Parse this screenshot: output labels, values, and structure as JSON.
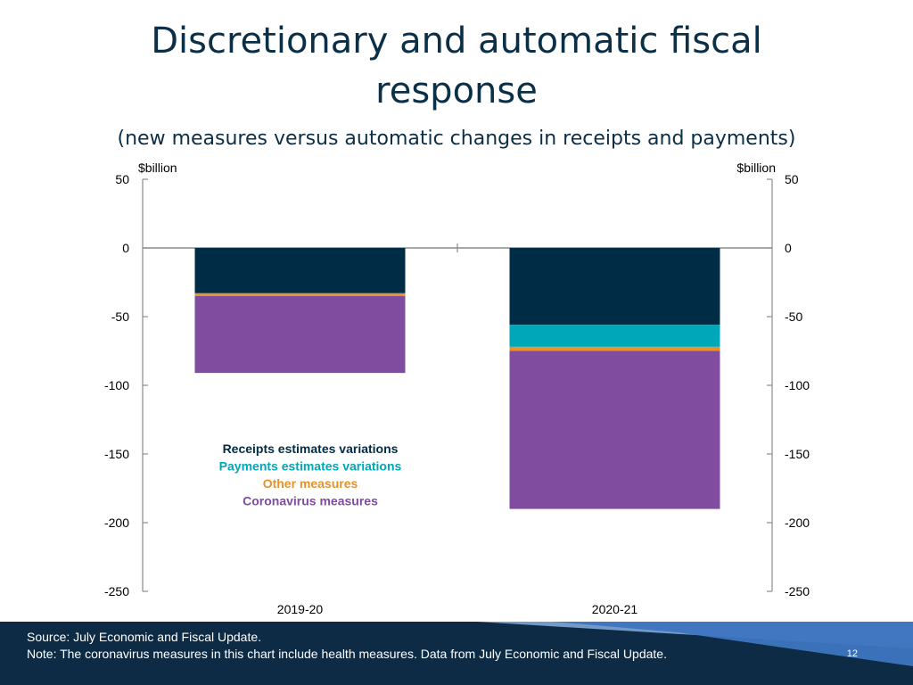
{
  "slide": {
    "title_line1": "Discretionary and automatic fiscal",
    "title_line2": "response",
    "subtitle": "(new measures versus automatic changes in receipts and payments)",
    "footer": {
      "source": "Source: July Economic and Fiscal Update.",
      "note": "Note: The coronavirus measures in this chart include health measures. Data from July Economic and Fiscal Update.",
      "page_number": "12"
    }
  },
  "chart_data": {
    "type": "bar",
    "stacked": true,
    "title": "",
    "ylabel_left": "$billion",
    "ylabel_right": "$billion",
    "ylim": [
      -250,
      50
    ],
    "yticks": [
      50,
      0,
      -50,
      -100,
      -150,
      -200,
      -250
    ],
    "grid": false,
    "categories": [
      "2019-20",
      "2020-21"
    ],
    "series": [
      {
        "name": "Receipts estimates variations",
        "color": "#002c46",
        "values": [
          -33,
          -56
        ]
      },
      {
        "name": "Payments estimates variations",
        "color": "#00a7b8",
        "values": [
          0,
          -16
        ]
      },
      {
        "name": "Other measures",
        "color": "#e8912d",
        "values": [
          -2,
          -3
        ]
      },
      {
        "name": "Coronavirus measures",
        "color": "#7f4c9f",
        "values": [
          -56,
          -115
        ]
      }
    ],
    "legend_position": "lower-left"
  }
}
